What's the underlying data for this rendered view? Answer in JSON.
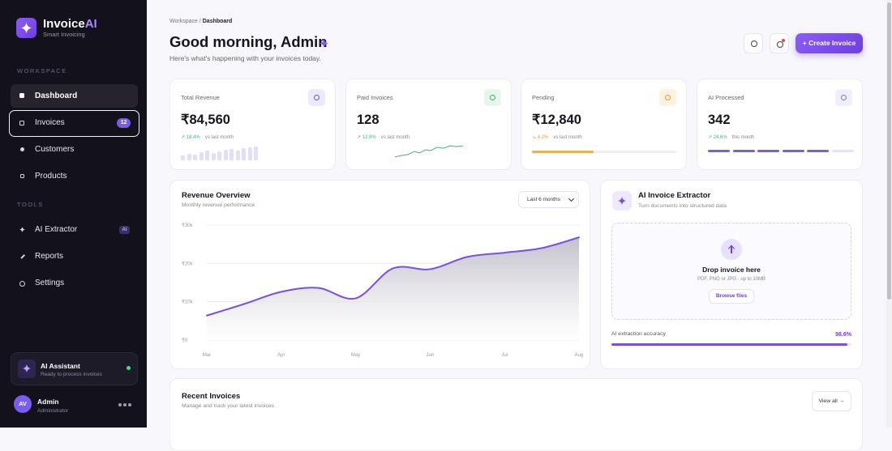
{
  "sidebar": {
    "brand": {
      "name": "Invoice",
      "accent": "AI",
      "tagline": "Smart Invoicing"
    },
    "sections": [
      {
        "title": "WORKSPACE",
        "items": [
          {
            "label": "Dashboard"
          },
          {
            "label": "Invoices",
            "badge": "12"
          },
          {
            "label": "Customers"
          },
          {
            "label": "Products"
          }
        ]
      },
      {
        "title": "TOOLS",
        "items": [
          {
            "label": "AI Extractor",
            "badge": "AI"
          },
          {
            "label": "Reports"
          },
          {
            "label": "Settings"
          }
        ]
      }
    ],
    "assistant": {
      "title": "AI Assistant",
      "status": "Ready to process invoices"
    },
    "user": {
      "initials": "AV",
      "name": "Admin",
      "role": "Administrator"
    }
  },
  "header": {
    "breadcrumb": {
      "parent": "Workspace",
      "separator": "/",
      "current": "Dashboard"
    },
    "title": "Good morning, Admin",
    "subtitle": "Here's what's happening with your invoices today.",
    "create_button": "+ Create Invoice"
  },
  "stats": [
    {
      "label": "Total Revenue",
      "value": "₹84,560",
      "change": "↗ 18.4%",
      "period": "vs last month"
    },
    {
      "label": "Paid Invoices",
      "value": "128",
      "change": "↗ 12.8%",
      "period": "vs last month"
    },
    {
      "label": "Pending",
      "value": "₹12,840",
      "change": "↘ 4.2%",
      "period": "vs last month"
    },
    {
      "label": "AI Processed",
      "value": "342",
      "change": "↗ 24.6%",
      "period": "this month"
    }
  ],
  "revenue_overview": {
    "title": "Revenue Overview",
    "subtitle": "Monthly revenue performance",
    "range": "Last 6 months",
    "chart": {
      "type": "area",
      "x": [
        0,
        0.5,
        1,
        1.5,
        2,
        2.5,
        3,
        3.5,
        4,
        4.5,
        5
      ],
      "values": [
        6400,
        9400,
        12600,
        13600,
        10900,
        18700,
        18500,
        21700,
        22800,
        24000,
        26800
      ],
      "color": "#7b4fe0",
      "xlim": [
        0,
        5
      ],
      "xticks": [
        {
          "value": 0,
          "label": "Mar"
        },
        {
          "value": 1,
          "label": "Apr"
        },
        {
          "value": 2,
          "label": "May"
        },
        {
          "value": 3,
          "label": "Jun"
        },
        {
          "value": 4,
          "label": "Jul"
        },
        {
          "value": 5,
          "label": "Aug"
        }
      ],
      "ylim": [
        0,
        30000
      ],
      "yticks": [
        {
          "value": 30000,
          "label": "₹30k"
        },
        {
          "value": 20000,
          "label": "₹20k"
        },
        {
          "value": 10000,
          "label": "₹10k"
        },
        {
          "value": 0,
          "label": "₹0"
        }
      ],
      "grid": true
    }
  },
  "extractor": {
    "title": "AI Invoice Extractor",
    "subtitle": "Turn documents into structured data",
    "drop_title": "Drop invoice here",
    "drop_hint": "PDF, PNG or JPG · up to 10MB",
    "browse": "Browse files",
    "accuracy_label": "AI extraction accuracy",
    "accuracy": "98.6%"
  },
  "recent": {
    "title": "Recent Invoices",
    "subtitle": "Manage and track your latest invoices",
    "view_all": "View all →"
  }
}
